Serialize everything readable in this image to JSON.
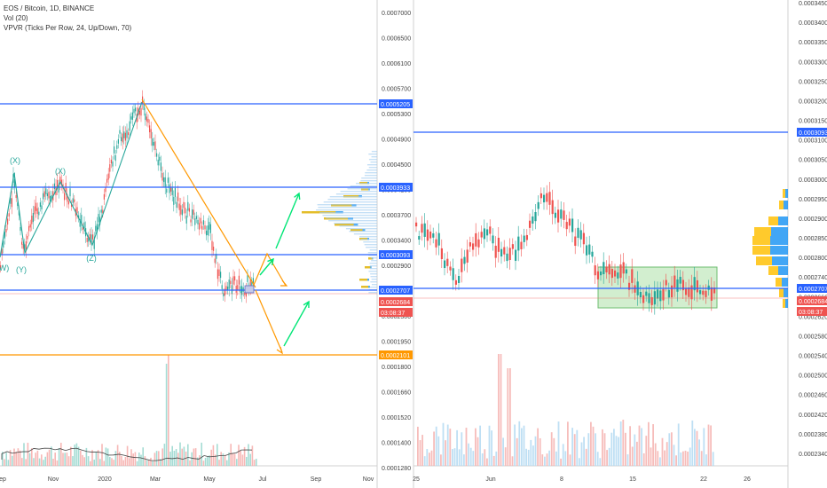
{
  "left_legend": {
    "symbol": "EOS / Bitcoin, 1D, BINANCE",
    "volume": "Vol (20)",
    "vpvr": "VPVR (Ticks Per Row, 24, Up/Down, 70)"
  },
  "colors": {
    "up": "#26a69a",
    "down": "#ef5350",
    "blue_line": "#2962ff",
    "orange_line": "#ff9800",
    "price_line": "#ef5350",
    "wave_label": "#26a69a",
    "arrow": "#00e676",
    "box_fill": "#c8ebc4",
    "box_stroke": "#4caf50",
    "vp_blue": "#2196f3",
    "vp_yellow": "#ffc107"
  },
  "chart_data": [
    {
      "type": "candlestick",
      "title": "EOS / Bitcoin, 1D, BINANCE",
      "x_ticks": [
        "ep",
        "Nov",
        "2020",
        "Mar",
        "May",
        "Jul",
        "Sep",
        "Nov"
      ],
      "y_ticks": [
        "0.0007000",
        "0.0006500",
        "0.0006100",
        "0.0005700",
        "0.0005300",
        "0.0004900",
        "0.0004500",
        "0.0004100",
        "0.0003700",
        "0.0003400",
        "0.0002900",
        "0.0002600",
        "0.0002300",
        "0.0001950",
        "0.0001800",
        "0.0001660",
        "0.0001520",
        "0.0001400",
        "0.0001280"
      ],
      "price_badges": [
        {
          "label": "0.0005205",
          "kind": "blue"
        },
        {
          "label": "0.0003933",
          "kind": "blue"
        },
        {
          "label": "0.0003093",
          "kind": "blue"
        },
        {
          "label": "0.0002707",
          "kind": "blue"
        },
        {
          "label": "0.0002684",
          "kind": "red"
        },
        {
          "label": "03:08:37",
          "kind": "red"
        },
        {
          "label": "0.0002101",
          "kind": "orange"
        }
      ],
      "horizontal_levels": [
        {
          "value": 0.0005205,
          "color": "blue"
        },
        {
          "value": 0.0003933,
          "color": "blue"
        },
        {
          "value": 0.0003093,
          "color": "blue"
        },
        {
          "value": 0.0002707,
          "color": "blue"
        },
        {
          "value": 0.0002101,
          "color": "orange"
        }
      ],
      "wave_labels": [
        "(X)",
        "(X)",
        "(W)",
        "(Y)",
        "(Z)"
      ],
      "current_price": 0.0002684
    },
    {
      "type": "candlestick",
      "x_ticks": [
        "25",
        "Jun",
        "8",
        "15",
        "22",
        "26"
      ],
      "y_ticks": [
        "0.0003450",
        "0.0003400",
        "0.0003350",
        "0.0003300",
        "0.0003250",
        "0.0003200",
        "0.0003150",
        "0.0003100",
        "0.0003050",
        "0.0003000",
        "0.0002950",
        "0.0002900",
        "0.0002850",
        "0.0002800",
        "0.0002740",
        "0.0002660",
        "0.0002620",
        "0.0002580",
        "0.0002540",
        "0.0002500",
        "0.0002460",
        "0.0002420",
        "0.0002380",
        "0.0002340"
      ],
      "price_badges": [
        {
          "label": "0.0003093",
          "kind": "blue"
        },
        {
          "label": "0.0002707",
          "kind": "blue"
        },
        {
          "label": "0.0002684",
          "kind": "red"
        },
        {
          "label": "03:08:37",
          "kind": "red"
        }
      ],
      "horizontal_levels": [
        {
          "value": 0.0003093,
          "color": "blue"
        },
        {
          "value": 0.0002707,
          "color": "blue"
        }
      ],
      "current_price": 0.0002684
    }
  ]
}
